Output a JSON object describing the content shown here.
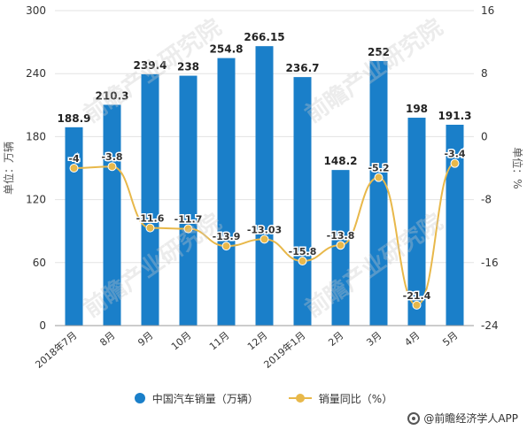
{
  "chart_data": {
    "type": "bar",
    "categories": [
      "2018年7月",
      "8月",
      "9月",
      "10月",
      "11月",
      "12月",
      "2019年1月",
      "2月",
      "3月",
      "4月",
      "5月"
    ],
    "series": [
      {
        "name": "中国汽车销量（万辆）",
        "type": "bar",
        "axis": "left",
        "color": "#1a7fc9",
        "values": [
          188.9,
          210.3,
          239.4,
          238,
          254.8,
          266.15,
          236.7,
          148.2,
          252,
          198,
          191.3
        ],
        "labels": [
          "188.9",
          "210.3",
          "239.4",
          "238",
          "254.8",
          "266.15",
          "236.7",
          "148.2",
          "252",
          "198",
          "191.3"
        ]
      },
      {
        "name": "销量同比（%）",
        "type": "line",
        "axis": "right",
        "color": "#e8b84a",
        "values": [
          -4,
          -3.8,
          -11.6,
          -11.7,
          -13.9,
          -13.03,
          -15.8,
          -13.8,
          -5.2,
          -21.4,
          -3.4
        ],
        "labels": [
          "-4",
          "-3.8",
          "-11.6",
          "-11.7",
          "-13.9",
          "-13.03",
          "-15.8",
          "-13.8",
          "-5.2",
          "-21.4",
          "-3.4"
        ]
      }
    ],
    "ylabel": "单位：万辆",
    "y2label": "单位：%",
    "ylim": [
      0,
      300
    ],
    "yticks": [
      0,
      60,
      120,
      180,
      240,
      300
    ],
    "y2lim": [
      -24,
      16
    ],
    "y2ticks": [
      -24,
      -16,
      -8,
      0,
      8,
      16
    ],
    "grid": true,
    "legend_position": "bottom"
  },
  "watermark": "前瞻产业研究院",
  "footer": {
    "source": "@前瞻经济学人APP"
  }
}
